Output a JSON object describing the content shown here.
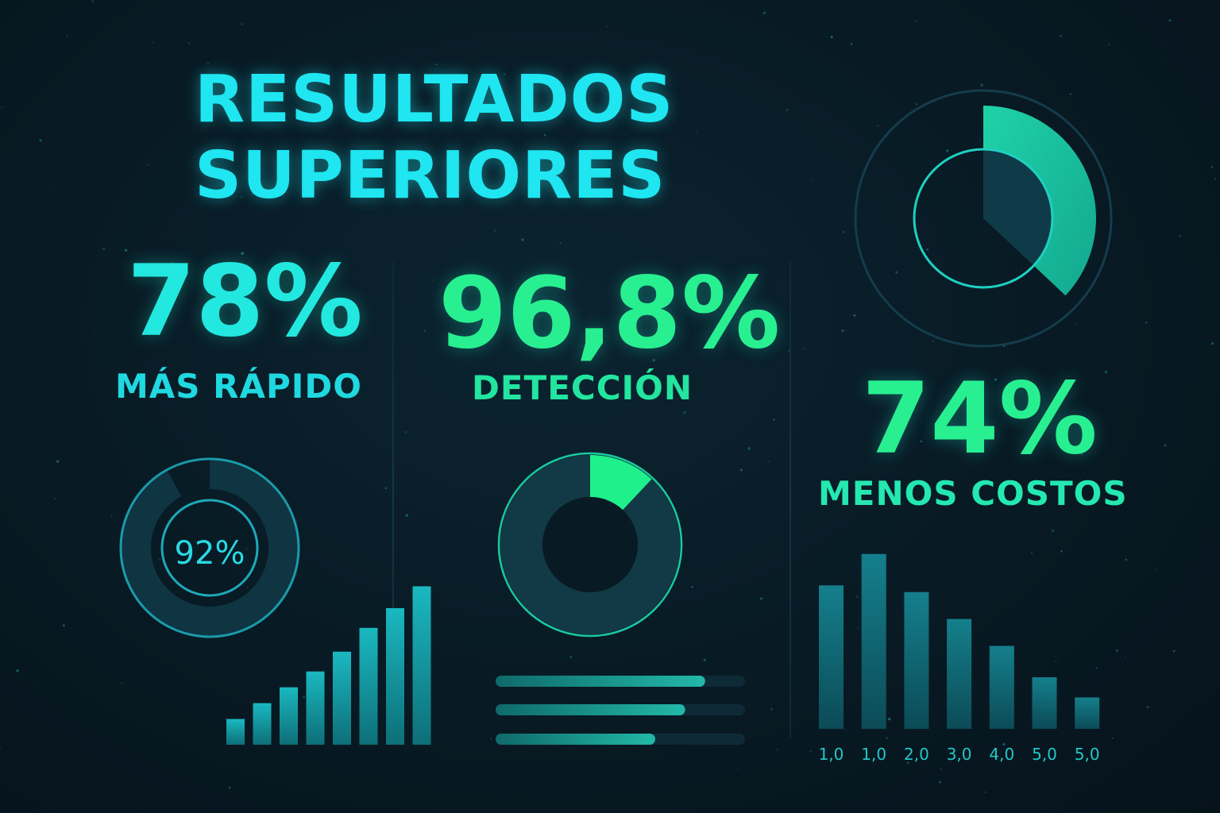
{
  "header": {
    "title_line1": "RESULTADOS",
    "title_line2": "SUPERIORES"
  },
  "stats": [
    {
      "value": "78%",
      "label": "MÁS RÁPIDO"
    },
    {
      "value": "96,8%",
      "label": "DETECCIÓN"
    },
    {
      "value": "74%",
      "label": "MENOS COSTOS"
    }
  ],
  "colors": {
    "cyan": "#1fe6f0",
    "green": "#22f08a",
    "teal": "#1ab8b8",
    "background": "#081a24"
  },
  "chart_data": [
    {
      "type": "pie",
      "name": "gauge-92",
      "center_label": "92%",
      "values": [
        92
      ],
      "max": 100
    },
    {
      "type": "bar",
      "name": "rising-bars",
      "values": [
        1.3,
        2.1,
        2.9,
        3.7,
        4.7,
        5.9,
        6.9,
        8.0
      ],
      "ylim": [
        0,
        8.5
      ]
    },
    {
      "type": "pie",
      "name": "donut-detection",
      "values": [
        12,
        88
      ]
    },
    {
      "type": "bar",
      "name": "horizontal-progress",
      "orientation": "horizontal",
      "values": [
        0.84,
        0.76,
        0.64
      ],
      "xlim": [
        0,
        1
      ]
    },
    {
      "type": "pie",
      "name": "sector-gauge",
      "values": [
        37
      ],
      "max": 100
    },
    {
      "type": "bar",
      "name": "cost-bars",
      "categories": [
        "1,0",
        "1,0",
        "2,0",
        "3,0",
        "4,0",
        "5,0",
        "5,0"
      ],
      "values": [
        6.4,
        7.8,
        6.1,
        4.9,
        3.7,
        2.3,
        1.4
      ],
      "ylim": [
        0,
        8.5
      ]
    }
  ]
}
